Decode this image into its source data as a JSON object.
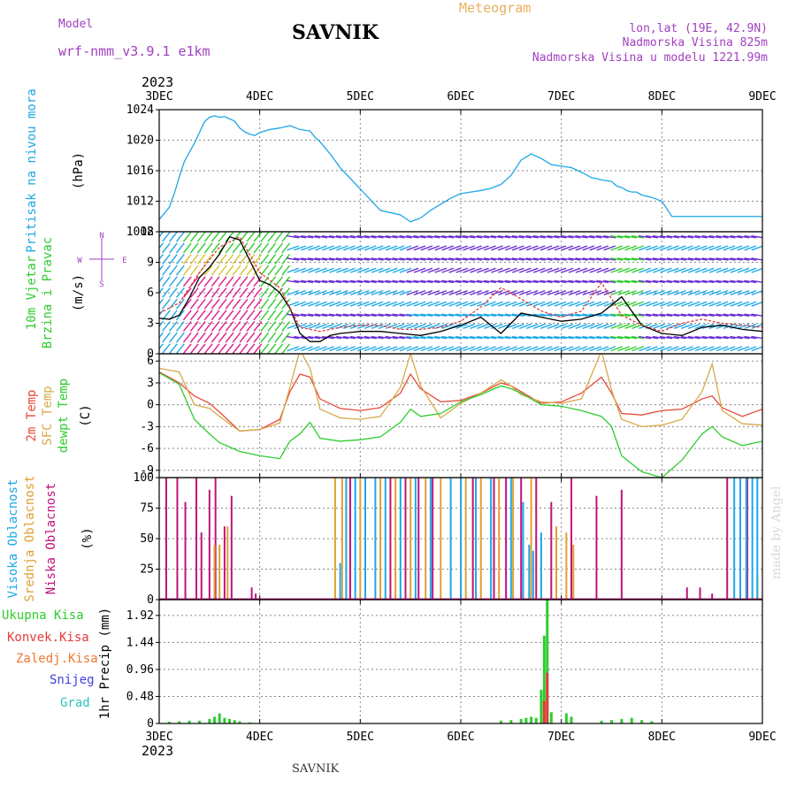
{
  "header": {
    "model_label": "Model",
    "model_name": "wrf-nmm_v3.9.1 e1km",
    "title": "SAVNIK",
    "product": "Meteogram",
    "coords": "lon,lat (19E, 42.9N)",
    "elevation": "Nadmorska Visina 825m",
    "model_elevation": "Nadmorska Visina u modelu 1221.99m",
    "watermark": "made by Angel",
    "footer": "SAVNIK",
    "year_top": "2023",
    "year_bottom": "2023"
  },
  "colors": {
    "pressure": "#1ea7e6",
    "wind_speed": "#000000",
    "wind_gust": "#e03a3a",
    "temp_2m": "#e64a3a",
    "temp_sfc": "#d8a84a",
    "dewpoint": "#2fcc2f",
    "cloud_high": "#1ea7e6",
    "cloud_mid": "#e0a030",
    "cloud_low": "#c0127a",
    "precip_total": "#2fcc2f",
    "precip_conv": "#e63a3a",
    "precip_frozen": "#f07830",
    "snow": "#4040e0",
    "hail": "#30c0c0",
    "grid": "#888888",
    "title_purple": "#a040c0",
    "title_orange": "#e8b060"
  },
  "chart_data": [
    {
      "type": "line",
      "panel": "pressure",
      "ylabel": [
        "Pritisak na nivou mora",
        "(hPa)"
      ],
      "x_categories": [
        "3DEC",
        "4DEC",
        "5DEC",
        "6DEC",
        "7DEC",
        "8DEC",
        "9DEC"
      ],
      "ylim": [
        1008,
        1024
      ],
      "yticks": [
        1008,
        1012,
        1016,
        1020,
        1024
      ],
      "grid": true,
      "series": [
        {
          "key": "pressure",
          "x": [
            0,
            0.05,
            0.1,
            0.15,
            0.2,
            0.25,
            0.3,
            0.35,
            0.4,
            0.45,
            0.5,
            0.55,
            0.6,
            0.65,
            0.7,
            0.75,
            0.8,
            0.85,
            0.9,
            0.95,
            1,
            1.1,
            1.2,
            1.3,
            1.4,
            1.5,
            1.55,
            1.6,
            1.7,
            1.8,
            1.9,
            2.0,
            2.1,
            2.2,
            2.3,
            2.4,
            2.5,
            2.6,
            2.7,
            2.8,
            2.9,
            3.0,
            3.1,
            3.2,
            3.3,
            3.4,
            3.5,
            3.6,
            3.7,
            3.8,
            3.9,
            4.0,
            4.1,
            4.2,
            4.3,
            4.4,
            4.5,
            4.55,
            4.6,
            4.65,
            4.7,
            4.75,
            4.8,
            4.9,
            5.0,
            5.1,
            5.2,
            5.3,
            5.4,
            5.5,
            5.6,
            5.7,
            5.8,
            5.9,
            6.0
          ],
          "values": [
            1009.6,
            1010.4,
            1011.2,
            1013.0,
            1015.2,
            1017.2,
            1018.4,
            1019.6,
            1021.0,
            1022.4,
            1023.0,
            1023.2,
            1023.0,
            1023.1,
            1022.8,
            1022.5,
            1021.6,
            1021.1,
            1020.8,
            1020.6,
            1021.0,
            1021.4,
            1021.6,
            1021.9,
            1021.4,
            1021.2,
            1020.4,
            1019.8,
            1018.2,
            1016.4,
            1015.0,
            1013.6,
            1012.2,
            1010.8,
            1010.5,
            1010.2,
            1009.3,
            1009.8,
            1010.8,
            1011.6,
            1012.4,
            1013.0,
            1013.2,
            1013.4,
            1013.7,
            1014.2,
            1015.4,
            1017.4,
            1018.2,
            1017.6,
            1016.8,
            1016.6,
            1016.4,
            1015.8,
            1015.1,
            1014.8,
            1014.6,
            1014.0,
            1013.8,
            1013.4,
            1013.2,
            1013.2,
            1012.8,
            1012.5,
            1012.0,
            1010.0,
            1010,
            1010,
            1010,
            1010,
            1010,
            1010,
            1010,
            1010,
            1010
          ]
        }
      ]
    },
    {
      "type": "line",
      "panel": "wind",
      "ylabel": [
        "10m Vjetar",
        "Brzina i Pravac",
        "(m/s)"
      ],
      "direction_legend": [
        "N",
        "S",
        "W",
        "E"
      ],
      "ylim": [
        0,
        12
      ],
      "yticks": [
        0,
        3,
        6,
        9,
        12
      ],
      "grid": true,
      "series": [
        {
          "key": "wind_speed",
          "x": [
            0,
            0.1,
            0.2,
            0.3,
            0.4,
            0.5,
            0.6,
            0.7,
            0.8,
            0.9,
            1.0,
            1.1,
            1.2,
            1.3,
            1.4,
            1.5,
            1.6,
            1.7,
            1.8,
            1.9,
            2.0,
            2.2,
            2.4,
            2.6,
            2.8,
            3.0,
            3.2,
            3.4,
            3.6,
            3.8,
            4.0,
            4.2,
            4.4,
            4.6,
            4.8,
            5.0,
            5.2,
            5.4,
            5.6,
            5.8,
            6.0
          ],
          "values": [
            3.5,
            3.4,
            3.8,
            5.5,
            7.5,
            8.5,
            9.8,
            11.5,
            11.2,
            9.2,
            7.2,
            6.8,
            6.0,
            4.5,
            2.0,
            1.2,
            1.2,
            1.8,
            2.0,
            2.1,
            2.2,
            2.2,
            2.0,
            1.8,
            2.2,
            2.8,
            3.6,
            2.0,
            4.0,
            3.6,
            3.2,
            3.4,
            4.0,
            5.6,
            2.8,
            2.0,
            1.8,
            2.6,
            2.8,
            2.4,
            2.2
          ]
        },
        {
          "key": "wind_gust",
          "x": [
            0,
            0.2,
            0.4,
            0.6,
            0.8,
            1.0,
            1.2,
            1.4,
            1.6,
            1.8,
            2.0,
            2.2,
            2.4,
            2.6,
            2.8,
            3.0,
            3.2,
            3.4,
            3.6,
            3.8,
            4.0,
            4.2,
            4.4,
            4.6,
            4.8,
            5.0,
            5.2,
            5.4,
            5.6,
            5.8,
            6.0
          ],
          "values": [
            4.0,
            5.0,
            8.0,
            10.5,
            11.5,
            8.0,
            6.5,
            2.6,
            2.2,
            2.6,
            2.8,
            2.8,
            2.4,
            2.4,
            2.6,
            3.2,
            4.6,
            6.5,
            5.4,
            4.2,
            3.6,
            4.2,
            7.0,
            3.8,
            2.8,
            2.2,
            3.0,
            3.4,
            3.0,
            2.8,
            2.6
          ]
        }
      ]
    },
    {
      "type": "line",
      "panel": "temperature",
      "ylabel": [
        "2m Temp",
        "SFC Temp",
        "dewpt Temp",
        "(C)"
      ],
      "ylim": [
        -10,
        7
      ],
      "yticks": [
        -9,
        -6,
        -3,
        0,
        3,
        6
      ],
      "grid": true,
      "series": [
        {
          "key": "temp_2m",
          "x": [
            0,
            0.2,
            0.35,
            0.5,
            0.6,
            0.8,
            1.0,
            1.2,
            1.3,
            1.4,
            1.5,
            1.6,
            1.8,
            2.0,
            2.2,
            2.4,
            2.5,
            2.6,
            2.8,
            3.0,
            3.2,
            3.4,
            3.5,
            3.6,
            3.8,
            4.0,
            4.2,
            4.4,
            4.5,
            4.6,
            4.8,
            5.0,
            5.2,
            5.4,
            5.5,
            5.6,
            5.8,
            6.0
          ],
          "values": [
            4.5,
            3.0,
            1.2,
            0.2,
            -1.0,
            -3.6,
            -3.4,
            -2.0,
            1.8,
            4.2,
            3.8,
            0.8,
            -0.5,
            -0.8,
            -0.4,
            1.6,
            4.2,
            2.2,
            0.4,
            0.6,
            1.6,
            3.0,
            2.6,
            1.8,
            0.2,
            0.4,
            1.6,
            3.8,
            1.6,
            -1.2,
            -1.4,
            -0.8,
            -0.6,
            0.8,
            1.2,
            -0.4,
            -1.6,
            -0.6
          ]
        },
        {
          "key": "temp_sfc",
          "x": [
            0,
            0.2,
            0.35,
            0.5,
            0.6,
            0.8,
            1.0,
            1.2,
            1.3,
            1.4,
            1.5,
            1.6,
            1.8,
            2.0,
            2.2,
            2.4,
            2.5,
            2.6,
            2.8,
            3.0,
            3.2,
            3.4,
            3.5,
            3.6,
            3.8,
            4.0,
            4.2,
            4.4,
            4.5,
            4.6,
            4.8,
            5.0,
            5.2,
            5.4,
            5.5,
            5.6,
            5.8,
            6.0
          ],
          "values": [
            5.0,
            4.5,
            0.0,
            -0.5,
            -1.6,
            -3.6,
            -3.4,
            -2.5,
            2.4,
            7.5,
            5.0,
            -0.6,
            -1.8,
            -2.0,
            -1.6,
            2.4,
            7.0,
            2.6,
            -1.8,
            0.2,
            1.6,
            3.4,
            2.6,
            1.4,
            0.4,
            0.2,
            0.8,
            7.4,
            2.0,
            -2.0,
            -3.0,
            -2.8,
            -2.0,
            1.8,
            5.6,
            -0.8,
            -2.6,
            -2.8
          ]
        },
        {
          "key": "dewpoint",
          "x": [
            0,
            0.2,
            0.35,
            0.5,
            0.6,
            0.8,
            1.0,
            1.2,
            1.3,
            1.4,
            1.5,
            1.6,
            1.8,
            2.0,
            2.2,
            2.4,
            2.5,
            2.6,
            2.8,
            3.0,
            3.2,
            3.4,
            3.5,
            3.6,
            3.8,
            4.0,
            4.2,
            4.4,
            4.5,
            4.6,
            4.8,
            5.0,
            5.2,
            5.4,
            5.5,
            5.6,
            5.8,
            6.0
          ],
          "values": [
            4.4,
            2.8,
            -2.0,
            -4.0,
            -5.2,
            -6.4,
            -7.0,
            -7.4,
            -5.0,
            -4.0,
            -2.4,
            -4.6,
            -5.0,
            -4.8,
            -4.4,
            -2.4,
            -0.6,
            -1.6,
            -1.2,
            0.4,
            1.4,
            2.6,
            2.2,
            1.6,
            0.0,
            -0.2,
            -0.8,
            -1.6,
            -3.0,
            -7.0,
            -9.2,
            -10.0,
            -7.6,
            -4.0,
            -3.0,
            -4.4,
            -5.6,
            -5.0
          ]
        }
      ]
    },
    {
      "type": "bar",
      "panel": "cloud",
      "ylabel": [
        "Visoka Oblacnost",
        "Srednja Oblacnost",
        "Niska Oblacnost",
        "(%)"
      ],
      "ylim": [
        0,
        100
      ],
      "yticks": [
        0,
        25,
        50,
        75,
        100
      ],
      "grid": true,
      "series": [
        {
          "key": "cloud_low",
          "x": [
            0.07,
            0.18,
            0.26,
            0.37,
            0.42,
            0.5,
            0.56,
            0.65,
            0.72,
            0.92,
            0.96,
            1.9,
            2.3,
            2.45,
            2.58,
            2.72,
            3.12,
            3.33,
            3.45,
            3.6,
            3.75,
            3.9,
            4.1,
            4.35,
            4.6,
            5.25,
            5.38,
            5.5,
            5.65,
            5.85
          ],
          "values": [
            100,
            100,
            80,
            100,
            55,
            90,
            100,
            60,
            85,
            10,
            5,
            100,
            100,
            100,
            100,
            100,
            100,
            100,
            100,
            100,
            100,
            80,
            100,
            85,
            90,
            10,
            10,
            5,
            100,
            100
          ]
        },
        {
          "key": "cloud_mid",
          "x": [
            0.55,
            0.6,
            0.68,
            1.75,
            1.82,
            2.0,
            2.2,
            2.35,
            2.5,
            2.65,
            2.8,
            3.05,
            3.2,
            3.38,
            3.52,
            3.7,
            3.95,
            4.05,
            4.12,
            5.95
          ],
          "values": [
            45,
            45,
            60,
            100,
            100,
            100,
            100,
            100,
            100,
            100,
            100,
            100,
            100,
            100,
            100,
            100,
            60,
            55,
            45,
            20
          ]
        },
        {
          "key": "cloud_high",
          "x": [
            1.8,
            1.86,
            1.95,
            2.05,
            2.15,
            2.25,
            2.4,
            2.55,
            2.7,
            2.9,
            3.0,
            3.15,
            3.3,
            3.5,
            3.62,
            3.68,
            3.72,
            3.8,
            5.72,
            5.78,
            5.84,
            5.9,
            5.95
          ],
          "values": [
            30,
            100,
            100,
            100,
            100,
            100,
            100,
            100,
            100,
            100,
            100,
            100,
            100,
            100,
            80,
            45,
            40,
            55,
            100,
            100,
            100,
            100,
            100
          ]
        }
      ]
    },
    {
      "type": "bar",
      "panel": "precipitation",
      "ylabel": [
        "1hr Precip (mm)"
      ],
      "legend": [
        "Ukupna Kisa",
        "Konvek.Kisa",
        "Zaledj.Kisa",
        "Snijeg",
        "Grad"
      ],
      "ylim": [
        0,
        2.2
      ],
      "yticks": [
        0,
        0.48,
        0.96,
        1.44,
        1.92
      ],
      "grid": true,
      "series": [
        {
          "key": "precip_total",
          "x": [
            0.1,
            0.2,
            0.3,
            0.4,
            0.5,
            0.55,
            0.6,
            0.65,
            0.7,
            0.75,
            0.8,
            0.9,
            3.4,
            3.5,
            3.6,
            3.65,
            3.7,
            3.75,
            3.8,
            3.83,
            3.86,
            3.9,
            4.05,
            4.1,
            4.4,
            4.5,
            4.6,
            4.7,
            4.8,
            4.9
          ],
          "values": [
            0.03,
            0.04,
            0.05,
            0.05,
            0.08,
            0.12,
            0.18,
            0.1,
            0.08,
            0.06,
            0.04,
            0.02,
            0.05,
            0.06,
            0.08,
            0.1,
            0.12,
            0.1,
            0.6,
            1.56,
            2.28,
            0.2,
            0.18,
            0.12,
            0.05,
            0.06,
            0.08,
            0.1,
            0.06,
            0.04
          ]
        },
        {
          "key": "precip_conv",
          "x": [
            3.83,
            3.86
          ],
          "values": [
            0.4,
            0.9
          ]
        }
      ]
    }
  ]
}
